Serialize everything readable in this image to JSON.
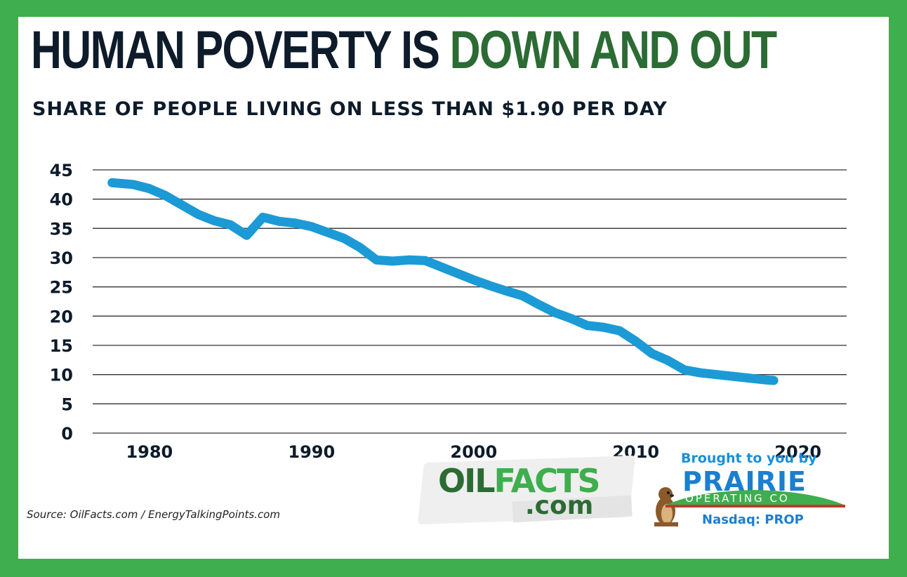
{
  "title": {
    "part1": "HUMAN POVERTY IS ",
    "part2": "DOWN AND OUT"
  },
  "subtitle": "SHARE OF PEOPLE LIVING ON LESS THAN $1.90 PER DAY",
  "source": "Source: OilFacts.com / EnergyTalkingPoints.com",
  "logos": {
    "oilfacts_oil": "OIL",
    "oilfacts_facts": "FACTS",
    "oilfacts_com": ".com",
    "brought_by": "Brought to you by",
    "prairie_name": "PRAIRIE",
    "prairie_operating": "OPERATING CO",
    "nasdaq": "Nasdaq: PROP"
  },
  "colors": {
    "border": "#3fae4e",
    "title_dark": "#0d1b2a",
    "title_green": "#2c6b34",
    "line": "#1b9ad6",
    "grid": "#333333"
  },
  "chart_data": {
    "type": "line",
    "title": "",
    "xlabel": "",
    "ylabel": "",
    "ylim": [
      0,
      45
    ],
    "xlim": [
      1976.5,
      2023
    ],
    "y_ticks": [
      0,
      5,
      10,
      15,
      20,
      25,
      30,
      35,
      40,
      45
    ],
    "x_ticks": [
      1980,
      1990,
      2000,
      2010,
      2020
    ],
    "grid": "horizontal",
    "legend": "none",
    "series": [
      {
        "name": "",
        "x": [
          1977.7,
          1979,
          1980,
          1981,
          1982,
          1983,
          1984,
          1985,
          1986,
          1987,
          1988,
          1989,
          1990,
          1991,
          1992,
          1993,
          1994,
          1995,
          1996,
          1997,
          1998,
          1999,
          2000,
          2001,
          2002,
          2003,
          2004,
          2005,
          2006,
          2007,
          2008,
          2009,
          2010,
          2011,
          2012,
          2013,
          2014,
          2015,
          2016,
          2017,
          2018,
          2018.5
        ],
        "y": [
          42.8,
          42.5,
          41.8,
          40.6,
          39.0,
          37.4,
          36.3,
          35.6,
          33.8,
          36.9,
          36.2,
          35.9,
          35.3,
          34.3,
          33.3,
          31.7,
          29.6,
          29.4,
          29.6,
          29.5,
          28.4,
          27.3,
          26.2,
          25.2,
          24.3,
          23.5,
          22.0,
          20.6,
          19.6,
          18.4,
          18.1,
          17.5,
          15.7,
          13.6,
          12.4,
          10.8,
          10.3,
          10.0,
          9.7,
          9.4,
          9.1,
          9.0
        ]
      }
    ]
  }
}
